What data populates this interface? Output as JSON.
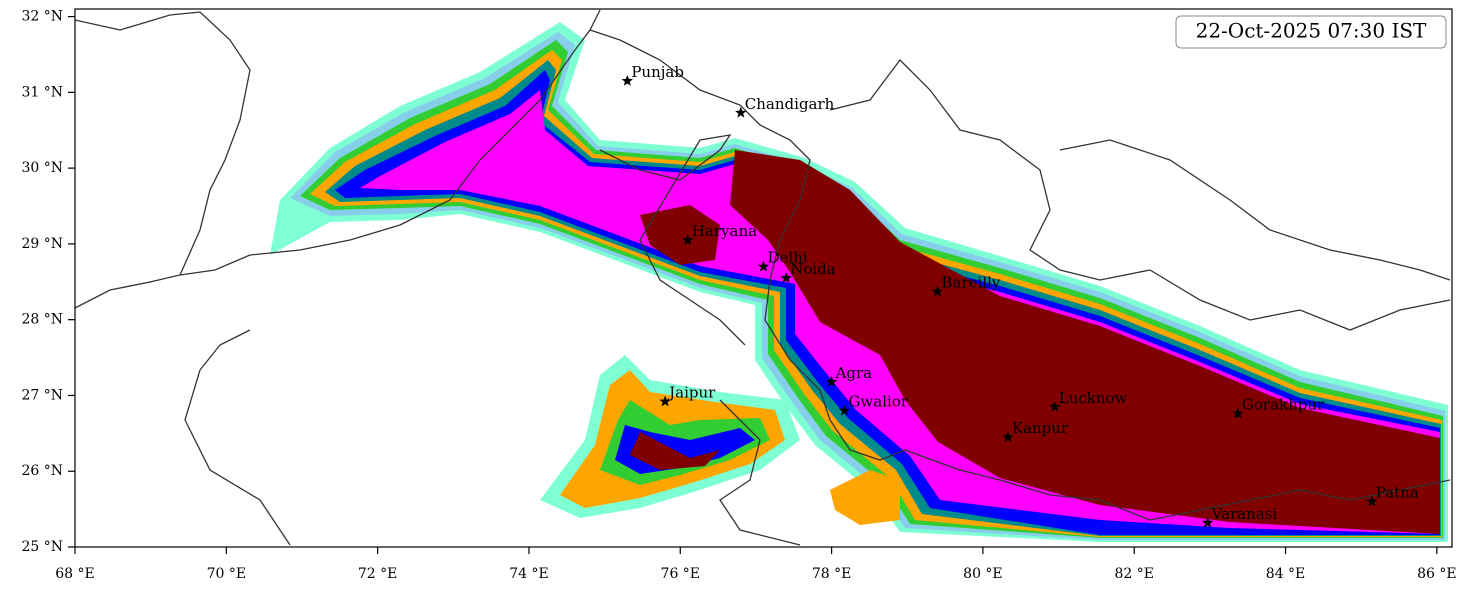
{
  "chart_data": {
    "type": "map",
    "title": "22-Oct-2025 07:30 IST",
    "xlim": [
      68,
      86.2
    ],
    "ylim": [
      25,
      32.1
    ],
    "xticks": [
      {
        "value": 68,
        "label": "68 °E"
      },
      {
        "value": 70,
        "label": "70 °E"
      },
      {
        "value": 72,
        "label": "72 °E"
      },
      {
        "value": 74,
        "label": "74 °E"
      },
      {
        "value": 76,
        "label": "76 °E"
      },
      {
        "value": 78,
        "label": "78 °E"
      },
      {
        "value": 80,
        "label": "80 °E"
      },
      {
        "value": 82,
        "label": "82 °E"
      },
      {
        "value": 84,
        "label": "84 °E"
      },
      {
        "value": 86,
        "label": "86 °E"
      }
    ],
    "yticks": [
      {
        "value": 25,
        "label": "25 °N"
      },
      {
        "value": 26,
        "label": "26 °N"
      },
      {
        "value": 27,
        "label": "27 °N"
      },
      {
        "value": 28,
        "label": "28 °N"
      },
      {
        "value": 29,
        "label": "29 °N"
      },
      {
        "value": 30,
        "label": "30 °N"
      },
      {
        "value": 31,
        "label": "31 °N"
      },
      {
        "value": 32,
        "label": "32 °N"
      }
    ],
    "cities": [
      {
        "name": "Punjab",
        "lon": 75.3,
        "lat": 31.15
      },
      {
        "name": "Chandigarh",
        "lon": 76.8,
        "lat": 30.73
      },
      {
        "name": "Haryana",
        "lon": 76.1,
        "lat": 29.05
      },
      {
        "name": "Delhi",
        "lon": 77.1,
        "lat": 28.7
      },
      {
        "name": "Noida",
        "lon": 77.4,
        "lat": 28.55
      },
      {
        "name": "Bareilly",
        "lon": 79.4,
        "lat": 28.37
      },
      {
        "name": "Agra",
        "lon": 78.0,
        "lat": 27.18
      },
      {
        "name": "Gwalior",
        "lon": 78.17,
        "lat": 26.8
      },
      {
        "name": "Jaipur",
        "lon": 75.8,
        "lat": 26.92
      },
      {
        "name": "Lucknow",
        "lon": 80.95,
        "lat": 26.85
      },
      {
        "name": "Kanpur",
        "lon": 80.33,
        "lat": 26.45
      },
      {
        "name": "Gorakhpur",
        "lon": 83.37,
        "lat": 26.76
      },
      {
        "name": "Varanasi",
        "lon": 82.97,
        "lat": 25.32
      },
      {
        "name": "Patna",
        "lon": 85.14,
        "lat": 25.6
      }
    ]
  }
}
